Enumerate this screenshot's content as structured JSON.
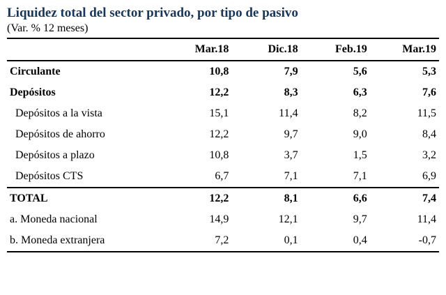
{
  "title": "Liquidez total del sector privado, por tipo de pasivo",
  "subtitle": "(Var. % 12 meses)",
  "colors": {
    "title": "#17365d",
    "text": "#000000",
    "rule": "#000000"
  },
  "chart_data": {
    "type": "table",
    "columns": [
      "",
      "Mar.18",
      "Dic.18",
      "Feb.19",
      "Mar.19"
    ],
    "rows": [
      {
        "label": "Circulante",
        "style": "bold",
        "values": [
          "10,8",
          "7,9",
          "5,6",
          "5,3"
        ]
      },
      {
        "label": "Depósitos",
        "style": "bold",
        "values": [
          "12,2",
          "8,3",
          "6,3",
          "7,6"
        ]
      },
      {
        "label": "Depósitos a la vista",
        "style": "indent",
        "values": [
          "15,1",
          "11,4",
          "8,2",
          "11,5"
        ]
      },
      {
        "label": "Depósitos de ahorro",
        "style": "indent",
        "values": [
          "12,2",
          "9,7",
          "9,0",
          "8,4"
        ]
      },
      {
        "label": "Depósitos a plazo",
        "style": "indent",
        "values": [
          "10,8",
          "3,7",
          "1,5",
          "3,2"
        ]
      },
      {
        "label": "Depósitos CTS",
        "style": "indent",
        "values": [
          "6,7",
          "7,1",
          "7,1",
          "6,9"
        ]
      },
      {
        "label": "TOTAL",
        "style": "total",
        "values": [
          "12,2",
          "8,1",
          "6,6",
          "7,4"
        ]
      },
      {
        "label": "a. Moneda nacional",
        "style": "plain",
        "values": [
          "14,9",
          "12,1",
          "9,7",
          "11,4"
        ]
      },
      {
        "label": "b. Moneda extranjera",
        "style": "plain",
        "values": [
          "7,2",
          "0,1",
          "0,4",
          "-0,7"
        ]
      }
    ]
  }
}
